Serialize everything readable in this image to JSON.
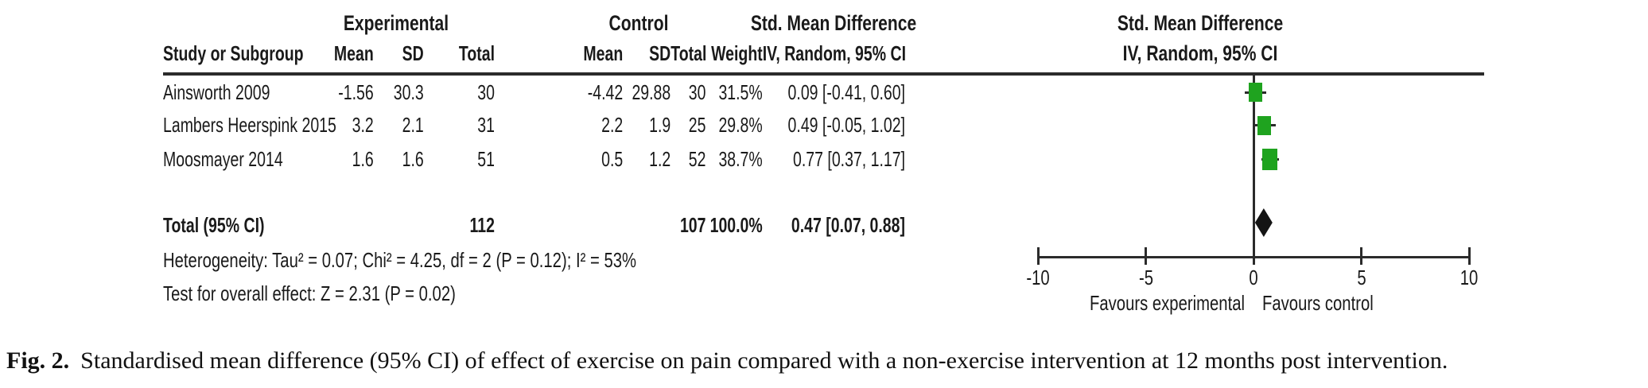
{
  "colors": {
    "marker_green": "#1FA31F",
    "diamond_black": "#141414",
    "line": "#2b2b2b",
    "text": "#1a1a1a"
  },
  "table": {
    "group_headers": {
      "experimental": "Experimental",
      "control": "Control",
      "smd": "Std. Mean Difference",
      "smd_plot": "Std. Mean Difference"
    },
    "col_headers": {
      "study": "Study or Subgroup",
      "mean": "Mean",
      "sd": "SD",
      "total": "Total",
      "mean2": "Mean",
      "sd2": "SD",
      "total2": "Total",
      "weight": "Weight",
      "ci": "IV, Random, 95% CI",
      "ci_plot": "IV, Random, 95% CI"
    },
    "rows": [
      {
        "study": "Ainsworth 2009",
        "mean": "-1.56",
        "sd": "30.3",
        "total": "30",
        "mean2": "-4.42",
        "sd2": "29.88",
        "total2": "30",
        "weight": "31.5%",
        "ci": "0.09 [-0.41, 0.60]"
      },
      {
        "study": "Lambers Heerspink 2015",
        "mean": "3.2",
        "sd": "2.1",
        "total": "31",
        "mean2": "2.2",
        "sd2": "1.9",
        "total2": "25",
        "weight": "29.8%",
        "ci": "0.49 [-0.05, 1.02]"
      },
      {
        "study": "Moosmayer 2014",
        "mean": "1.6",
        "sd": "1.6",
        "total": "51",
        "mean2": "0.5",
        "sd2": "1.2",
        "total2": "52",
        "weight": "38.7%",
        "ci": "0.77 [0.37, 1.17]"
      }
    ],
    "total_row": {
      "label": "Total (95% CI)",
      "total": "112",
      "total2": "107",
      "weight": "100.0%",
      "ci": "0.47 [0.07, 0.88]"
    },
    "heterogeneity": "Heterogeneity: Tau² = 0.07; Chi² = 4.25, df = 2 (P = 0.12); I² = 53%",
    "overall_effect": "Test for overall effect: Z = 2.31 (P = 0.02)"
  },
  "caption": {
    "label": "Fig. 2.",
    "text": "Standardised mean difference (95% CI) of effect of exercise on pain compared with a non-exercise intervention at 12 months post intervention."
  },
  "chart_data": {
    "type": "forest",
    "title": "Std. Mean Difference, IV, Random, 95% CI",
    "x_axis": {
      "min": -10,
      "max": 10,
      "ticks": [
        -10,
        -5,
        0,
        5,
        10
      ],
      "label_left": "Favours experimental",
      "label_right": "Favours control"
    },
    "studies": [
      {
        "name": "Ainsworth 2009",
        "smd": 0.09,
        "ci_low": -0.41,
        "ci_high": 0.6,
        "weight_pct": 31.5
      },
      {
        "name": "Lambers Heerspink 2015",
        "smd": 0.49,
        "ci_low": -0.05,
        "ci_high": 1.02,
        "weight_pct": 29.8
      },
      {
        "name": "Moosmayer 2014",
        "smd": 0.77,
        "ci_low": 0.37,
        "ci_high": 1.17,
        "weight_pct": 38.7
      }
    ],
    "total": {
      "name": "Total (95% CI)",
      "smd": 0.47,
      "ci_low": 0.07,
      "ci_high": 0.88
    }
  }
}
